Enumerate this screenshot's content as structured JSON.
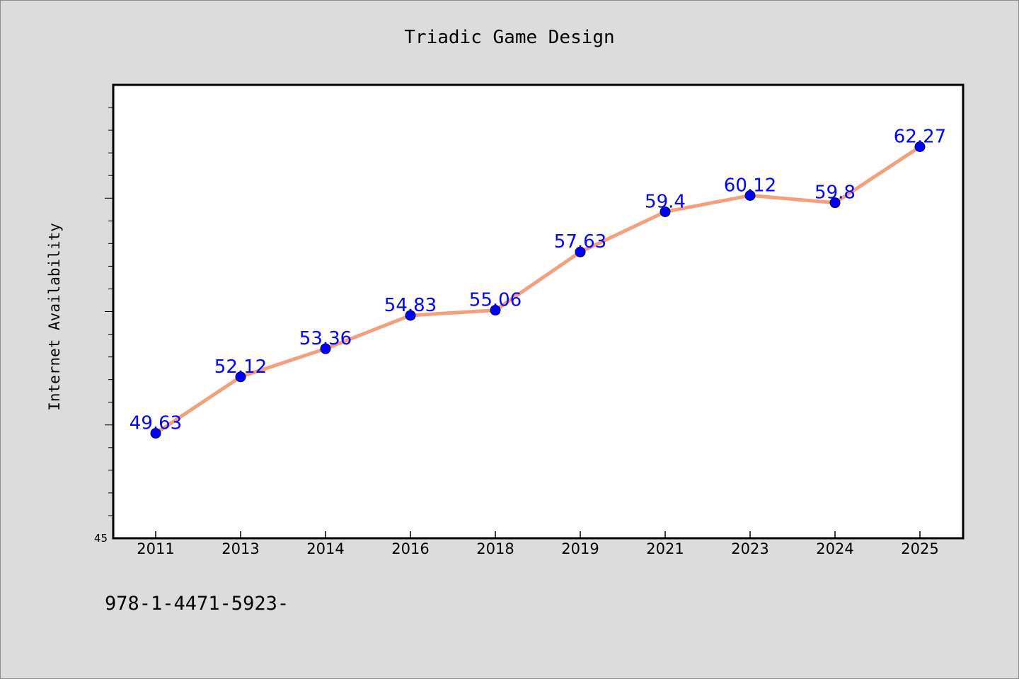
{
  "chart_data": {
    "type": "line",
    "title": "Triadic Game Design",
    "xlabel": "",
    "ylabel": "Internet Availability",
    "categories": [
      "2011",
      "2013",
      "2014",
      "2016",
      "2018",
      "2019",
      "2021",
      "2023",
      "2024",
      "2025"
    ],
    "series": [
      {
        "values": [
          49.63,
          52.12,
          53.36,
          54.83,
          55.06,
          57.63,
          59.4,
          60.12,
          59.8,
          62.27
        ],
        "labels": [
          "49.63",
          "52.12",
          "53.36",
          "54.83",
          "55.06",
          "57.63",
          "59.4",
          "60.12",
          "59.8",
          "62.27"
        ]
      }
    ],
    "ylim": [
      45,
      65
    ],
    "ytick_label": "45",
    "grid": false,
    "legend": "none",
    "colors": {
      "line": "#f4a07e",
      "marker": "#0000ff",
      "data_label": "#0000ff",
      "plot_background": "#ffffff",
      "figure_background": "#dcdcdc"
    }
  },
  "footer": {
    "text": "978-1-4471-5923-"
  }
}
